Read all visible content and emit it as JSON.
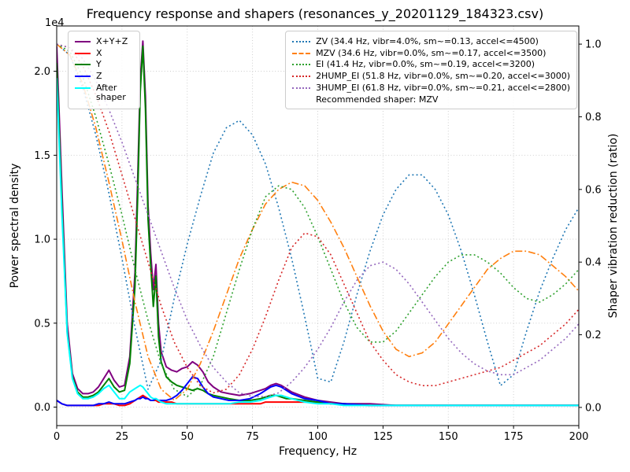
{
  "title": "Frequency response and shapers (resonances_y_20201129_184323.csv)",
  "axes": {
    "x": {
      "label": "Frequency, Hz",
      "min": 0,
      "max": 200,
      "ticks": [
        0,
        25,
        50,
        75,
        100,
        125,
        150,
        175,
        200
      ]
    },
    "y_left": {
      "label": "Power spectral density",
      "offset_text": "1e4",
      "min": -0.11,
      "max": 2.27,
      "ticks": [
        0.0,
        0.5,
        1.0,
        1.5,
        2.0
      ]
    },
    "y_right": {
      "label": "Shaper vibration reduction (ratio)",
      "min": -0.05,
      "max": 1.05,
      "ticks": [
        0.0,
        0.2,
        0.4,
        0.6,
        0.8,
        1.0
      ]
    }
  },
  "legend_psd": {
    "items": [
      {
        "label": "X+Y+Z",
        "color": "#800080",
        "style": "solid"
      },
      {
        "label": "X",
        "color": "#ff0000",
        "style": "solid"
      },
      {
        "label": "Y",
        "color": "#008000",
        "style": "solid"
      },
      {
        "label": "Z",
        "color": "#0000ff",
        "style": "solid"
      },
      {
        "label": "After shaper",
        "color": "#00ffff",
        "style": "solid"
      }
    ]
  },
  "legend_shapers": {
    "items": [
      {
        "label": "ZV (34.4 Hz, vibr=4.0%, sm~=0.13, accel<=4500)",
        "color": "#1f77b4",
        "style": "dotted"
      },
      {
        "label": "MZV (34.6 Hz, vibr=0.0%, sm~=0.17, accel<=3500)",
        "color": "#ff7f0e",
        "style": "dashdot"
      },
      {
        "label": "EI (41.4 Hz, vibr=0.0%, sm~=0.19, accel<=3200)",
        "color": "#2ca02c",
        "style": "dotted"
      },
      {
        "label": "2HUMP_EI (51.8 Hz, vibr=0.0%, sm~=0.20, accel<=3000)",
        "color": "#d62728",
        "style": "dotted"
      },
      {
        "label": "3HUMP_EI (61.8 Hz, vibr=0.0%, sm~=0.21, accel<=2800)",
        "color": "#9467bd",
        "style": "dotted"
      }
    ],
    "note": "Recommended shaper: MZV"
  },
  "chart_data": {
    "type": "line",
    "psd_unit": "1e4",
    "x_psd": [
      0,
      2,
      4,
      6,
      8,
      10,
      12,
      14,
      16,
      18,
      20,
      22,
      24,
      26,
      28,
      30,
      31,
      32,
      33,
      34,
      35,
      36,
      37,
      38,
      39,
      40,
      42,
      44,
      46,
      48,
      50,
      52,
      54,
      56,
      58,
      60,
      63,
      66,
      70,
      74,
      78,
      80,
      82,
      84,
      86,
      88,
      90,
      95,
      100,
      105,
      110,
      120,
      130,
      140,
      150,
      160,
      170,
      180,
      190,
      200
    ],
    "x_shaper": [
      0,
      5,
      10,
      15,
      20,
      25,
      30,
      35,
      40,
      45,
      50,
      55,
      60,
      65,
      70,
      75,
      80,
      85,
      90,
      95,
      100,
      105,
      110,
      115,
      120,
      125,
      130,
      135,
      140,
      145,
      150,
      155,
      160,
      165,
      170,
      175,
      180,
      185,
      190,
      195,
      200
    ],
    "series": [
      {
        "name": "X+Y+Z",
        "axis": "left",
        "color": "#800080",
        "style": "solid",
        "width": 2,
        "x_ref": "x_psd",
        "y": [
          2.15,
          1.3,
          0.5,
          0.2,
          0.11,
          0.08,
          0.08,
          0.09,
          0.12,
          0.17,
          0.22,
          0.16,
          0.12,
          0.13,
          0.3,
          0.8,
          1.35,
          1.95,
          2.18,
          1.85,
          1.2,
          0.92,
          0.7,
          0.85,
          0.5,
          0.33,
          0.24,
          0.22,
          0.21,
          0.23,
          0.24,
          0.27,
          0.25,
          0.21,
          0.15,
          0.12,
          0.09,
          0.08,
          0.07,
          0.08,
          0.1,
          0.11,
          0.13,
          0.14,
          0.13,
          0.11,
          0.09,
          0.06,
          0.04,
          0.03,
          0.02,
          0.02,
          0.01,
          0.01,
          0.01,
          0.01,
          0.01,
          0.01,
          0.01,
          0.01
        ]
      },
      {
        "name": "X",
        "axis": "left",
        "color": "#ff0000",
        "style": "solid",
        "width": 2,
        "x_ref": "x_psd",
        "y": [
          0.04,
          0.02,
          0.01,
          0.01,
          0.01,
          0.01,
          0.01,
          0.01,
          0.01,
          0.02,
          0.02,
          0.02,
          0.01,
          0.01,
          0.02,
          0.04,
          0.05,
          0.06,
          0.07,
          0.06,
          0.05,
          0.04,
          0.04,
          0.04,
          0.03,
          0.03,
          0.03,
          0.03,
          0.02,
          0.02,
          0.02,
          0.02,
          0.02,
          0.02,
          0.02,
          0.02,
          0.02,
          0.02,
          0.02,
          0.02,
          0.02,
          0.03,
          0.03,
          0.03,
          0.03,
          0.03,
          0.03,
          0.03,
          0.03,
          0.02,
          0.02,
          0.01,
          0.01,
          0.01,
          0.01,
          0.01,
          0.01,
          0.01,
          0.01,
          0.01
        ]
      },
      {
        "name": "Y",
        "axis": "left",
        "color": "#008000",
        "style": "solid",
        "width": 2,
        "x_ref": "x_psd",
        "y": [
          2.05,
          1.2,
          0.45,
          0.18,
          0.09,
          0.06,
          0.06,
          0.07,
          0.09,
          0.13,
          0.17,
          0.12,
          0.09,
          0.1,
          0.26,
          0.72,
          1.25,
          1.88,
          2.15,
          1.78,
          1.12,
          0.85,
          0.6,
          0.78,
          0.42,
          0.27,
          0.18,
          0.15,
          0.13,
          0.12,
          0.11,
          0.1,
          0.11,
          0.1,
          0.08,
          0.07,
          0.06,
          0.05,
          0.04,
          0.04,
          0.05,
          0.06,
          0.07,
          0.07,
          0.06,
          0.05,
          0.05,
          0.04,
          0.03,
          0.02,
          0.02,
          0.01,
          0.01,
          0.01,
          0.01,
          0.01,
          0.01,
          0.01,
          0.01,
          0.01
        ]
      },
      {
        "name": "Z",
        "axis": "left",
        "color": "#0000ff",
        "style": "solid",
        "width": 2,
        "x_ref": "x_psd",
        "y": [
          0.04,
          0.02,
          0.01,
          0.01,
          0.01,
          0.01,
          0.01,
          0.01,
          0.02,
          0.02,
          0.03,
          0.02,
          0.02,
          0.02,
          0.03,
          0.04,
          0.05,
          0.05,
          0.06,
          0.05,
          0.05,
          0.04,
          0.04,
          0.05,
          0.04,
          0.04,
          0.04,
          0.05,
          0.07,
          0.1,
          0.14,
          0.18,
          0.17,
          0.12,
          0.08,
          0.06,
          0.05,
          0.04,
          0.04,
          0.05,
          0.08,
          0.1,
          0.12,
          0.13,
          0.12,
          0.1,
          0.08,
          0.05,
          0.04,
          0.02,
          0.02,
          0.01,
          0.01,
          0.01,
          0.01,
          0.01,
          0.01,
          0.01,
          0.01,
          0.01
        ]
      },
      {
        "name": "After shaper",
        "axis": "left",
        "color": "#00ffff",
        "style": "solid",
        "width": 2,
        "x_ref": "x_psd",
        "y": [
          1.96,
          1.15,
          0.44,
          0.17,
          0.08,
          0.05,
          0.05,
          0.06,
          0.08,
          0.11,
          0.13,
          0.09,
          0.05,
          0.05,
          0.09,
          0.11,
          0.12,
          0.13,
          0.12,
          0.1,
          0.08,
          0.06,
          0.05,
          0.05,
          0.04,
          0.03,
          0.02,
          0.02,
          0.02,
          0.02,
          0.02,
          0.02,
          0.02,
          0.02,
          0.02,
          0.02,
          0.02,
          0.02,
          0.03,
          0.03,
          0.04,
          0.05,
          0.06,
          0.07,
          0.07,
          0.06,
          0.05,
          0.03,
          0.02,
          0.02,
          0.01,
          0.01,
          0.01,
          0.01,
          0.01,
          0.01,
          0.01,
          0.01,
          0.01,
          0.01
        ]
      },
      {
        "name": "ZV",
        "axis": "right",
        "color": "#1f77b4",
        "style": "dotted",
        "width": 1.6,
        "x_ref": "x_shaper",
        "y": [
          1.0,
          0.97,
          0.88,
          0.75,
          0.59,
          0.41,
          0.22,
          0.05,
          0.13,
          0.3,
          0.45,
          0.58,
          0.7,
          0.77,
          0.79,
          0.75,
          0.67,
          0.55,
          0.41,
          0.25,
          0.08,
          0.07,
          0.18,
          0.31,
          0.43,
          0.53,
          0.6,
          0.64,
          0.64,
          0.6,
          0.53,
          0.43,
          0.31,
          0.18,
          0.06,
          0.09,
          0.21,
          0.32,
          0.41,
          0.49,
          0.55
        ]
      },
      {
        "name": "MZV",
        "axis": "right",
        "color": "#ff7f0e",
        "style": "dashdot",
        "width": 1.6,
        "x_ref": "x_shaper",
        "y": [
          1.0,
          0.97,
          0.89,
          0.77,
          0.62,
          0.46,
          0.29,
          0.14,
          0.05,
          0.02,
          0.05,
          0.12,
          0.21,
          0.31,
          0.41,
          0.49,
          0.56,
          0.6,
          0.62,
          0.61,
          0.57,
          0.51,
          0.44,
          0.36,
          0.28,
          0.21,
          0.16,
          0.14,
          0.15,
          0.18,
          0.23,
          0.28,
          0.33,
          0.38,
          0.41,
          0.43,
          0.43,
          0.42,
          0.39,
          0.36,
          0.32
        ]
      },
      {
        "name": "EI",
        "axis": "right",
        "color": "#2ca02c",
        "style": "dotted",
        "width": 1.6,
        "x_ref": "x_shaper",
        "y": [
          1.0,
          0.98,
          0.91,
          0.8,
          0.67,
          0.53,
          0.38,
          0.24,
          0.12,
          0.05,
          0.03,
          0.06,
          0.14,
          0.26,
          0.38,
          0.49,
          0.58,
          0.61,
          0.6,
          0.55,
          0.47,
          0.38,
          0.29,
          0.22,
          0.18,
          0.18,
          0.21,
          0.26,
          0.31,
          0.36,
          0.4,
          0.42,
          0.42,
          0.4,
          0.37,
          0.33,
          0.3,
          0.29,
          0.31,
          0.34,
          0.38
        ]
      },
      {
        "name": "2HUMP_EI",
        "axis": "right",
        "color": "#d62728",
        "style": "dotted",
        "width": 1.6,
        "x_ref": "x_shaper",
        "y": [
          1.0,
          0.99,
          0.94,
          0.86,
          0.76,
          0.64,
          0.52,
          0.4,
          0.28,
          0.18,
          0.11,
          0.06,
          0.04,
          0.05,
          0.09,
          0.16,
          0.25,
          0.35,
          0.44,
          0.48,
          0.47,
          0.42,
          0.34,
          0.26,
          0.18,
          0.13,
          0.09,
          0.07,
          0.06,
          0.06,
          0.07,
          0.08,
          0.09,
          0.1,
          0.11,
          0.13,
          0.15,
          0.17,
          0.2,
          0.23,
          0.27
        ]
      },
      {
        "name": "3HUMP_EI",
        "axis": "right",
        "color": "#9467bd",
        "style": "dotted",
        "width": 1.6,
        "x_ref": "x_shaper",
        "y": [
          1.0,
          0.99,
          0.96,
          0.9,
          0.82,
          0.73,
          0.63,
          0.53,
          0.43,
          0.33,
          0.24,
          0.17,
          0.11,
          0.07,
          0.04,
          0.03,
          0.03,
          0.04,
          0.07,
          0.11,
          0.16,
          0.22,
          0.29,
          0.35,
          0.39,
          0.4,
          0.38,
          0.34,
          0.29,
          0.24,
          0.19,
          0.15,
          0.12,
          0.1,
          0.09,
          0.09,
          0.11,
          0.13,
          0.16,
          0.19,
          0.23
        ]
      }
    ]
  }
}
